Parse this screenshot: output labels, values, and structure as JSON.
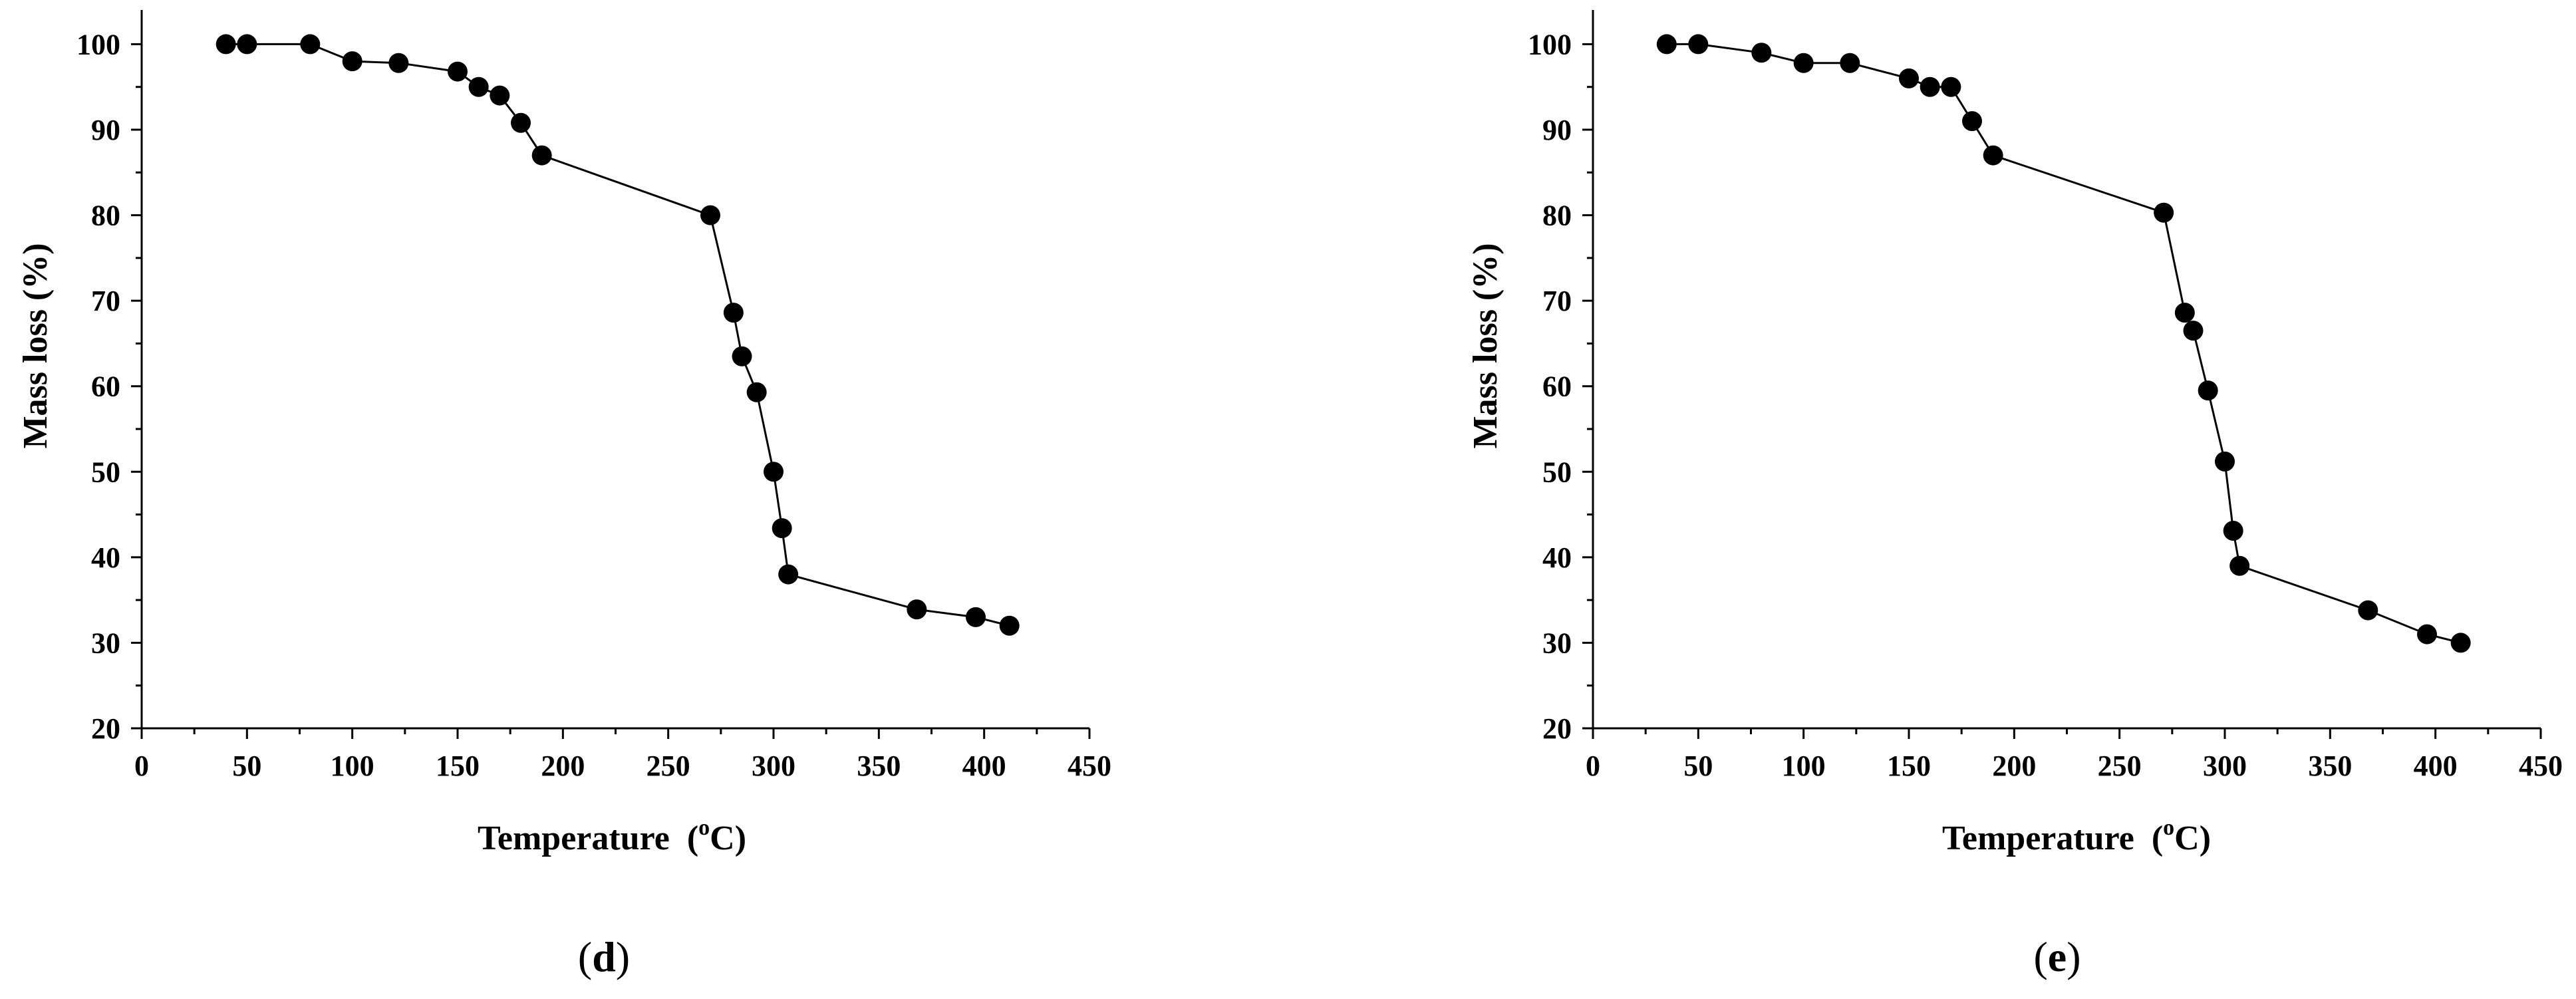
{
  "figure": {
    "panels": [
      {
        "panel_label_open": "(",
        "panel_label_letter": "d",
        "panel_label_close": ")"
      },
      {
        "panel_label_open": "(",
        "panel_label_letter": "e",
        "panel_label_close": ")"
      }
    ]
  },
  "chart_data": [
    {
      "type": "line",
      "markers": "filled-circle",
      "title": "",
      "xlabel_main": "Temperature",
      "xlabel_unit_open": "(",
      "xlabel_unit_sup": "o",
      "xlabel_unit_rest": "C)",
      "ylabel": "Mass loss (%)",
      "xlim": [
        0,
        450
      ],
      "ylim": [
        20,
        104
      ],
      "xticks": [
        0,
        50,
        100,
        150,
        200,
        250,
        300,
        350,
        400,
        450
      ],
      "yticks": [
        20,
        30,
        40,
        50,
        60,
        70,
        80,
        90,
        100
      ],
      "grid": false,
      "legend": "none",
      "color": "#000000",
      "series": [
        {
          "x": [
            40,
            50,
            80,
            100,
            122,
            150,
            160,
            170,
            180,
            190,
            270,
            281,
            285,
            292,
            300,
            304,
            307,
            368,
            396,
            412
          ],
          "y": [
            100,
            100,
            100,
            98,
            97.8,
            96.8,
            95,
            94,
            90.8,
            87,
            80,
            68.6,
            63.5,
            59.3,
            50,
            43.4,
            38,
            33.9,
            33,
            32
          ]
        }
      ]
    },
    {
      "type": "line",
      "markers": "filled-circle",
      "title": "",
      "xlabel_main": "Temperature",
      "xlabel_unit_open": "(",
      "xlabel_unit_sup": "o",
      "xlabel_unit_rest": "C)",
      "ylabel": "Mass loss (%)",
      "xlim": [
        0,
        450
      ],
      "ylim": [
        20,
        104
      ],
      "xticks": [
        0,
        50,
        100,
        150,
        200,
        250,
        300,
        350,
        400,
        450
      ],
      "yticks": [
        20,
        30,
        40,
        50,
        60,
        70,
        80,
        90,
        100
      ],
      "grid": false,
      "legend": "none",
      "color": "#000000",
      "series": [
        {
          "x": [
            35,
            50,
            80,
            100,
            122,
            150,
            160,
            170,
            180,
            190,
            271,
            281,
            285,
            292,
            300,
            304,
            307,
            368,
            396,
            412
          ],
          "y": [
            100,
            100,
            99,
            97.8,
            97.8,
            96,
            95,
            95,
            91,
            87,
            80.3,
            68.6,
            66.5,
            59.5,
            51.2,
            43.1,
            39,
            33.8,
            31,
            30
          ]
        }
      ]
    }
  ]
}
